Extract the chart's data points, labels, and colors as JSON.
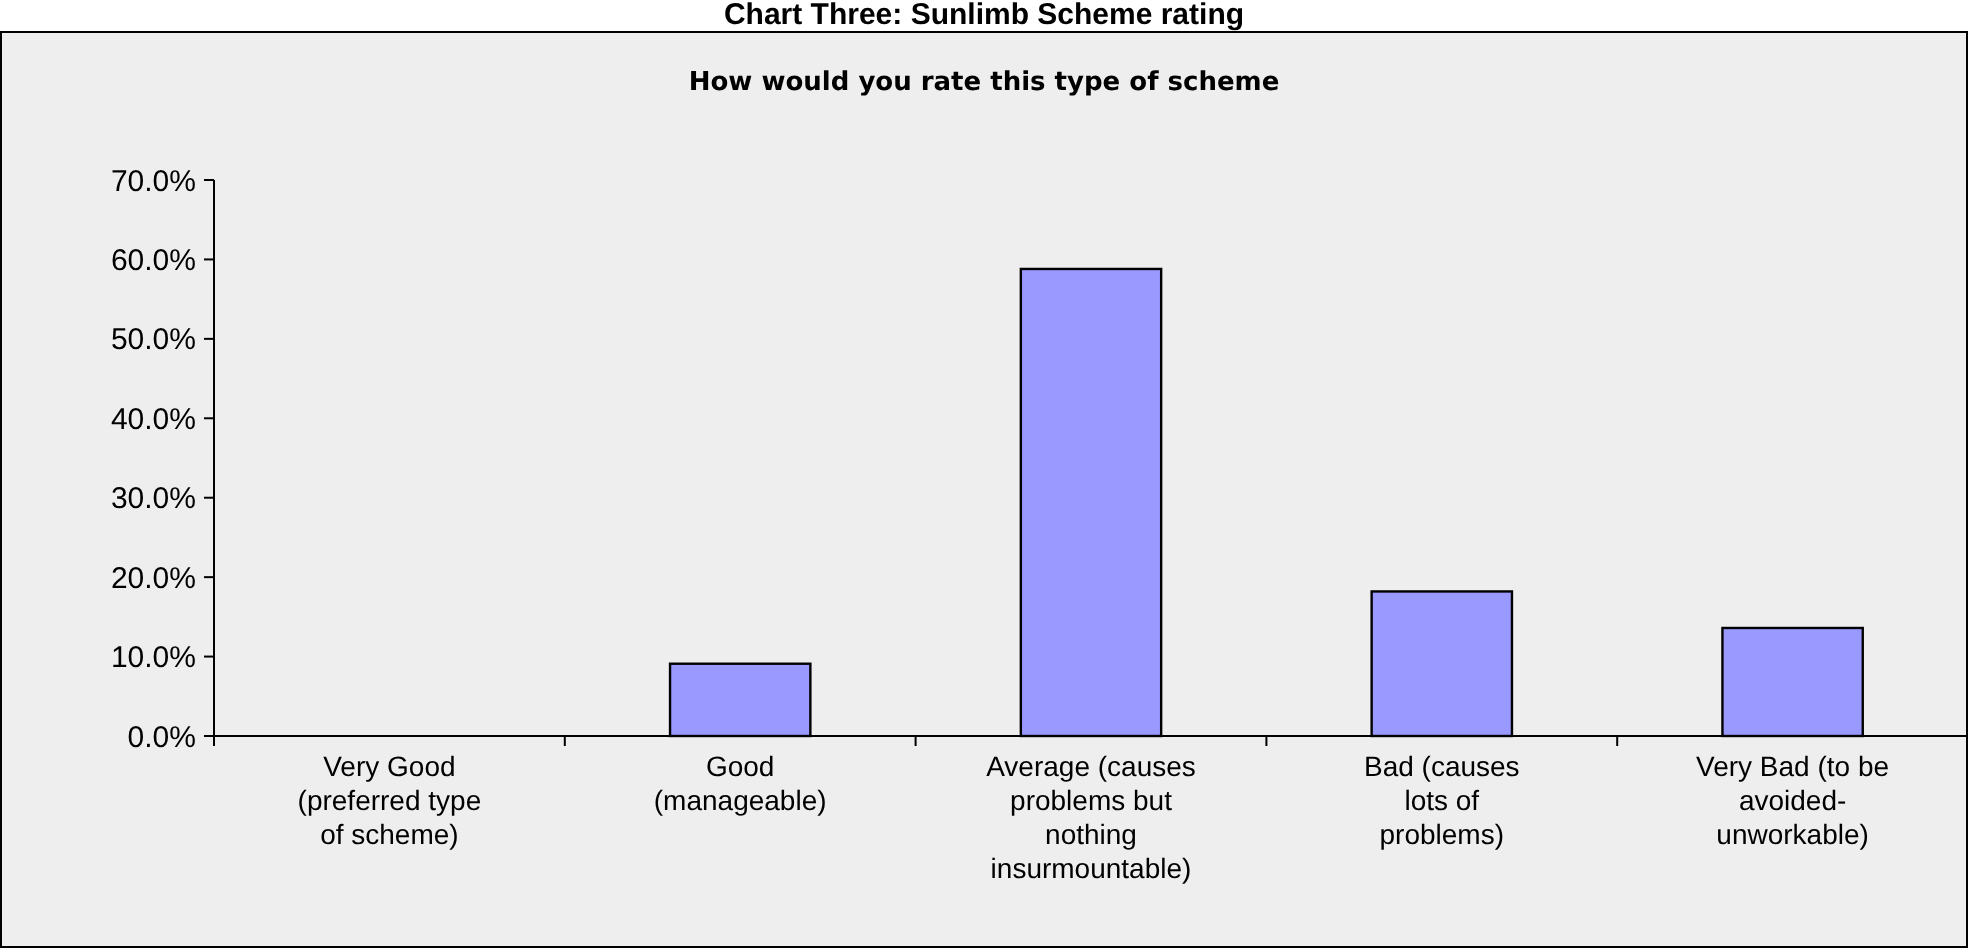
{
  "chart_data": {
    "type": "bar",
    "title": "Chart Three: Sunlimb Scheme rating",
    "subtitle": "How would you rate this type of scheme",
    "categories": [
      "Very Good (preferred type of scheme)",
      "Good (manageable)",
      "Average (causes problems but nothing insurmountable)",
      "Bad (causes lots of problems)",
      "Very Bad (to be avoided-unworkable)"
    ],
    "values": [
      0,
      9.1,
      58.8,
      18.2,
      13.6
    ],
    "color": "#9999ff",
    "ylim": [
      0,
      70
    ],
    "yticks": [
      {
        "value": 0,
        "label": "0.0%"
      },
      {
        "value": 10,
        "label": "10.0%"
      },
      {
        "value": 20,
        "label": "20.0%"
      },
      {
        "value": 30,
        "label": "30.0%"
      },
      {
        "value": 40,
        "label": "40.0%"
      },
      {
        "value": 50,
        "label": "50.0%"
      },
      {
        "value": 60,
        "label": "60.0%"
      },
      {
        "value": 70,
        "label": "70.0%"
      }
    ],
    "grid": false
  }
}
